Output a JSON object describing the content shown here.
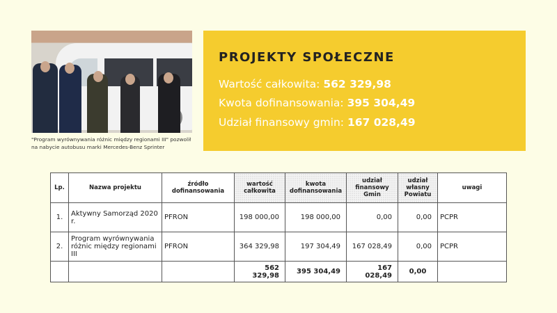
{
  "photo": {
    "caption": "\"Program wyrównywania różnic między regionami III\" pozwolił na nabycie autobusu marki Mercedes-Benz Sprinter"
  },
  "summary": {
    "title": "PROJEKTY SPOŁECZNE",
    "lines": [
      {
        "label": "Wartość całkowita:",
        "value": "562 329,98"
      },
      {
        "label": "Kwota dofinansowania:",
        "value": "395 304,49"
      },
      {
        "label": "Udział finansowy gmin:",
        "value": "167 028,49"
      }
    ],
    "background": "#f5cc2e"
  },
  "table": {
    "headers": [
      "Lp.",
      "Nazwa projektu",
      "źródło dofinansowania",
      "wartość całkowita",
      "kwota dofinansowania",
      "udział finansowy Gmin",
      "udział własny Powiatu",
      "uwagi"
    ],
    "rows": [
      [
        "1.",
        "Aktywny Samorząd 2020 r.",
        "PFRON",
        "198 000,00",
        "198 000,00",
        "0,00",
        "0,00",
        "PCPR"
      ],
      [
        "2.",
        "Program wyrównywania różnic między regionami III",
        "PFRON",
        "364 329,98",
        "197 304,49",
        "167 028,49",
        "0,00",
        "PCPR"
      ]
    ],
    "totals": [
      "",
      "",
      "",
      "562 329,98",
      "395 304,49",
      "167 028,49",
      "0,00",
      ""
    ]
  }
}
